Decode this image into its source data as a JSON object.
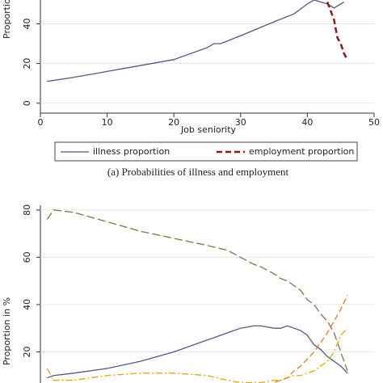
{
  "chart_data": [
    {
      "type": "line",
      "y_label": "Proportion",
      "x_label": "Job seniority",
      "caption": "(a) Probabilities of illness and employment",
      "x": [
        1,
        5,
        10,
        15,
        20,
        25,
        26,
        27,
        30,
        35,
        38,
        40,
        41,
        43,
        44,
        44.5,
        45,
        45.5,
        46
      ],
      "series": [
        {
          "name": "illness proportion",
          "color": "#4a5d80",
          "style": "solid",
          "values": [
            11,
            13,
            16,
            19,
            22,
            28,
            30,
            30,
            34,
            41,
            45,
            50,
            52,
            50,
            48,
            49,
            50,
            51,
            null
          ]
        },
        {
          "name": "employment proportion",
          "color": "#8b1a1a",
          "style": "dash",
          "values": [
            null,
            null,
            null,
            null,
            null,
            null,
            null,
            null,
            null,
            null,
            null,
            null,
            null,
            51,
            42,
            33,
            30,
            25,
            22
          ]
        }
      ],
      "xlim": [
        0,
        50
      ],
      "xticks": [
        0,
        10,
        20,
        30,
        40,
        50
      ],
      "ylim": [
        -5,
        52
      ],
      "yticks": [
        0,
        20,
        40
      ],
      "grid": true,
      "legend": "bottom"
    },
    {
      "type": "line",
      "y_label": "Proportion in %",
      "x": [
        1,
        2,
        5,
        10,
        15,
        20,
        25,
        28,
        30,
        32,
        33,
        35,
        36,
        37,
        38,
        39,
        40,
        41,
        42,
        43,
        44,
        45,
        46
      ],
      "series": [
        {
          "color": "#8a7048",
          "style": "longdash",
          "values": [
            76,
            80,
            79,
            75,
            71,
            68,
            65,
            63,
            60,
            57,
            56,
            53,
            51,
            50,
            48,
            46,
            42,
            40,
            36,
            33,
            28,
            20,
            12
          ]
        },
        {
          "color": "#4a5d80",
          "style": "solid",
          "values": [
            9,
            10,
            11,
            13,
            16,
            20,
            25,
            28,
            30,
            31,
            31,
            30,
            30,
            31,
            30,
            29,
            27,
            23,
            21,
            18,
            16,
            14,
            11
          ]
        },
        {
          "color": "#e0a800",
          "style": "dashdot",
          "values": [
            13,
            8,
            8,
            10,
            11,
            11,
            10,
            8,
            7,
            7,
            7,
            8,
            8,
            9,
            10,
            10,
            11,
            12,
            14,
            16,
            20,
            27,
            30
          ]
        },
        {
          "color": "#e07a20",
          "style": "dash",
          "values": [
            null,
            null,
            null,
            null,
            null,
            null,
            null,
            null,
            4,
            5,
            5,
            7,
            8,
            9,
            12,
            14,
            17,
            20,
            24,
            28,
            33,
            38,
            44
          ]
        }
      ],
      "xlim": [
        0,
        50
      ],
      "ylim": [
        0,
        82
      ],
      "yticks": [
        20,
        40,
        60,
        80
      ],
      "grid": true
    }
  ]
}
